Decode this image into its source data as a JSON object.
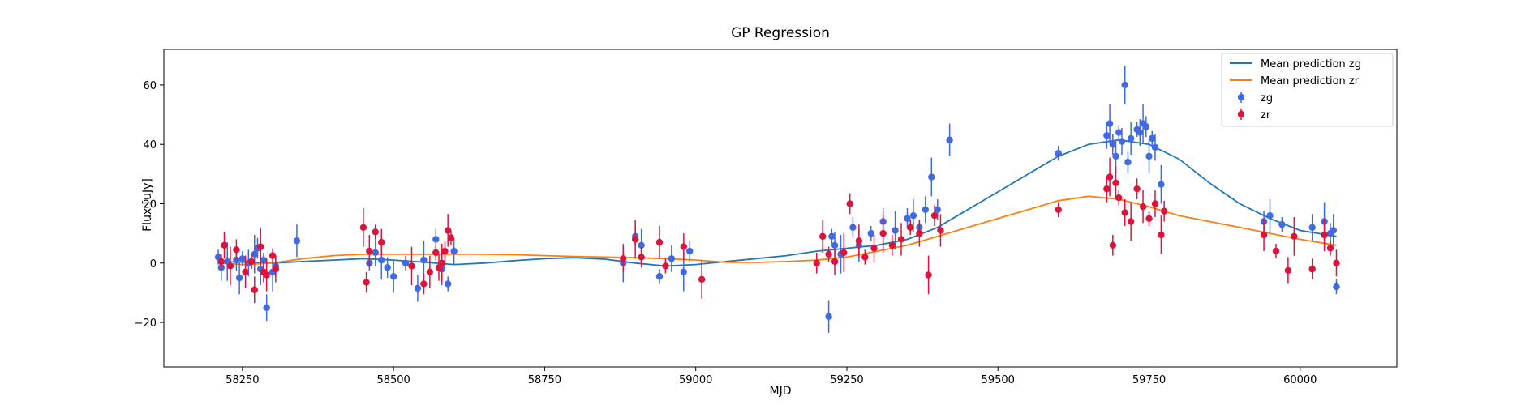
{
  "chart_data": {
    "type": "scatter",
    "title": "GP Regression",
    "xlabel": "MJD",
    "ylabel": "Flux [uJy]",
    "xlim": [
      58120,
      60160
    ],
    "ylim": [
      -35,
      72
    ],
    "xticks": [
      58250,
      58500,
      58750,
      59000,
      59250,
      59500,
      59750,
      60000
    ],
    "yticks": [
      -20,
      0,
      20,
      40,
      60
    ],
    "legend_position": "top-right",
    "grid": false,
    "colors": {
      "zg_line": "#1f77b4",
      "zr_line": "#ff7f0e",
      "zg_points": "#4169e1",
      "zr_points": "#dc143c"
    },
    "legend": [
      {
        "label": "Mean prediction zg",
        "kind": "line",
        "color": "#1f77b4"
      },
      {
        "label": "Mean prediction zr",
        "kind": "line",
        "color": "#ff7f0e"
      },
      {
        "label": "zg",
        "kind": "errorbar",
        "color": "#4169e1"
      },
      {
        "label": "zr",
        "kind": "errorbar",
        "color": "#dc143c"
      }
    ],
    "lines": [
      {
        "name": "Mean prediction zg",
        "color": "#1f77b4",
        "x": [
          58210,
          58250,
          58300,
          58350,
          58400,
          58450,
          58500,
          58550,
          58600,
          58650,
          58700,
          58750,
          58800,
          58850,
          58900,
          58950,
          59000,
          59050,
          59100,
          59150,
          59200,
          59250,
          59300,
          59350,
          59400,
          59450,
          59500,
          59550,
          59600,
          59650,
          59700,
          59750,
          59800,
          59850,
          59900,
          59950,
          60000,
          60060
        ],
        "y": [
          0.5,
          0.3,
          0,
          0.5,
          1,
          1.5,
          1,
          0.3,
          -0.5,
          0,
          0.8,
          1.5,
          1.8,
          1.3,
          0,
          -1,
          -0.5,
          0.5,
          1.5,
          2.5,
          4,
          5,
          6,
          8,
          12,
          18,
          24,
          30,
          36,
          40,
          41.5,
          40,
          35,
          27,
          20,
          15,
          11,
          9
        ]
      },
      {
        "name": "Mean prediction zr",
        "color": "#ff7f0e",
        "x": [
          58210,
          58250,
          58300,
          58350,
          58400,
          58450,
          58500,
          58550,
          58600,
          58650,
          58700,
          58750,
          58800,
          58850,
          58900,
          58950,
          59000,
          59050,
          59100,
          59150,
          59200,
          59250,
          59300,
          59350,
          59400,
          59450,
          59500,
          59550,
          59600,
          59650,
          59700,
          59750,
          59800,
          59850,
          59900,
          59950,
          60000,
          60060
        ],
        "y": [
          0,
          -0.5,
          0,
          1.5,
          2.5,
          3,
          3,
          3,
          3,
          3,
          2.8,
          2.5,
          2.2,
          2,
          1.8,
          1.5,
          1,
          0.3,
          0.2,
          0.5,
          1,
          2,
          4,
          6,
          9,
          12,
          15,
          18,
          21,
          22.5,
          21.5,
          19,
          16,
          14,
          12,
          10,
          8,
          6
        ]
      }
    ],
    "points": [
      {
        "name": "zg",
        "color": "#4169e1",
        "x": [
          58210,
          58215,
          58225,
          58240,
          58245,
          58250,
          58260,
          58270,
          58275,
          58280,
          58285,
          58290,
          58300,
          58305,
          58340,
          58460,
          58470,
          58480,
          58490,
          58500,
          58520,
          58540,
          58550,
          58570,
          58580,
          58590,
          58600,
          58880,
          58900,
          58910,
          58940,
          58960,
          58980,
          58990,
          59220,
          59225,
          59230,
          59240,
          59260,
          59270,
          59290,
          59310,
          59330,
          59350,
          59360,
          59370,
          59380,
          59390,
          59400,
          59420,
          59600,
          59680,
          59685,
          59690,
          59695,
          59700,
          59705,
          59710,
          59715,
          59720,
          59730,
          59735,
          59740,
          59745,
          59750,
          59755,
          59760,
          59770,
          59940,
          59950,
          59970,
          60020,
          60040,
          60050,
          60055,
          60060
        ],
        "y": [
          2,
          -1.5,
          0.5,
          1,
          -5,
          1.5,
          0,
          3,
          5,
          -2,
          1,
          -15,
          -3,
          -1,
          7.5,
          0,
          3.5,
          1,
          -1.5,
          -4.5,
          0,
          -8.5,
          1,
          8,
          -2,
          -7,
          4,
          0,
          9,
          6,
          -4.5,
          1.5,
          -3,
          4,
          -18,
          9,
          6,
          3,
          12,
          6,
          10,
          14,
          11,
          15,
          16,
          12,
          18,
          29,
          18,
          41.5,
          37,
          43,
          47,
          40,
          36,
          44,
          41,
          60,
          34,
          42,
          45,
          44,
          47,
          46,
          36,
          42,
          39,
          26.5,
          14,
          16,
          13,
          12,
          14,
          10,
          11,
          -8
        ]
      },
      {
        "name": "zr",
        "color": "#dc143c",
        "x": [
          58215,
          58220,
          58230,
          58240,
          58255,
          58265,
          58270,
          58280,
          58285,
          58290,
          58300,
          58305,
          58450,
          58455,
          58460,
          58470,
          58480,
          58530,
          58550,
          58560,
          58570,
          58575,
          58580,
          58585,
          58590,
          58595,
          58880,
          58900,
          58910,
          58940,
          58950,
          58980,
          59010,
          59200,
          59210,
          59220,
          59230,
          59245,
          59255,
          59270,
          59280,
          59295,
          59310,
          59325,
          59340,
          59355,
          59370,
          59385,
          59395,
          59405,
          59600,
          59680,
          59685,
          59690,
          59695,
          59700,
          59710,
          59720,
          59730,
          59740,
          59750,
          59760,
          59770,
          59775,
          59940,
          59960,
          59980,
          59990,
          60020,
          60040,
          60050,
          60060
        ],
        "y": [
          0.5,
          6,
          -1,
          4.5,
          -3,
          0.5,
          -9,
          5.5,
          -3,
          -4,
          2.5,
          -2,
          12,
          -6.5,
          4,
          10.5,
          7,
          -1,
          -7,
          -3,
          3.5,
          -1.5,
          0,
          4,
          11,
          8.5,
          1.5,
          8,
          2,
          7,
          -1,
          5.5,
          -5.5,
          0,
          9,
          3,
          0.5,
          3.5,
          20,
          7.5,
          2,
          5,
          10,
          6,
          8,
          12,
          10,
          -4,
          16,
          11,
          18,
          25,
          29,
          6,
          27,
          22,
          17,
          14,
          25,
          19,
          15,
          20,
          9.5,
          17.5,
          9.5,
          4,
          -2.5,
          9,
          -2,
          9.5,
          5,
          0
        ]
      }
    ]
  }
}
